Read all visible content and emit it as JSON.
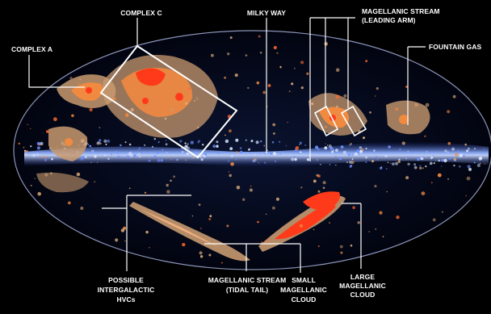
{
  "labels": {
    "complex_c": "COMPLEX C",
    "complex_a": "COMPLEX A",
    "milky_way": "MILKY WAY",
    "ms_leading_1": "MAGELLANIC STREAM",
    "ms_leading_2": "(LEADING ARM)",
    "fountain_gas": "FOUNTAIN GAS",
    "possible_1": "POSSIBLE",
    "possible_2": "INTERGALACTIC",
    "possible_3": "HVCs",
    "ms_tidal_1": "MAGELLANIC STREAM",
    "ms_tidal_2": "(TIDAL TAIL)",
    "smc_1": "SMALL",
    "smc_2": "MAGELLANIC",
    "smc_3": "CLOUD",
    "lmc_1": "LARGE",
    "lmc_2": "MAGELLANIC",
    "lmc_3": "CLOUD"
  },
  "colors": {
    "background": "#000000",
    "sky": "#04081a",
    "disk": "#7aa2ff",
    "cloud_outer": "#c89a70",
    "cloud_mid": "#f08a40",
    "cloud_core": "#ff3a1a",
    "line": "#ffffff"
  }
}
